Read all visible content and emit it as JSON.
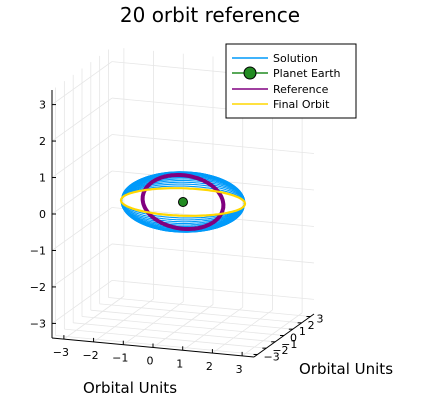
{
  "chart_data": {
    "type": "line",
    "title": "20 orbit reference",
    "xlabel": "Orbital Units",
    "ylabel": "Orbital Units",
    "zlabel": "",
    "xlim": [
      -3.4,
      3.4
    ],
    "ylim": [
      -3.4,
      3.4
    ],
    "zlim": [
      -3.4,
      3.4
    ],
    "x_ticks": [
      "−3",
      "−2",
      "−1",
      "0",
      "1",
      "2",
      "3"
    ],
    "y_ticks": [
      "−3",
      "−2",
      "−1",
      "0",
      "1",
      "2",
      "3"
    ],
    "z_ticks": [
      "−3",
      "−2",
      "−1",
      "0",
      "1",
      "2",
      "3"
    ],
    "grid": true,
    "legend_position": "top-right",
    "series": [
      {
        "name": "Solution",
        "color": "#009AFA",
        "description_orbits": 20,
        "ellipse_start": {
          "semi_major": 2.05,
          "semi_minor": 1.0,
          "inclination_deg": 40,
          "raan_deg": 0
        },
        "ellipse_end": {
          "semi_major": 2.0,
          "semi_minor": 2.0,
          "inclination_deg": 0,
          "raan_deg": 0
        }
      },
      {
        "name": "Planet Earth",
        "color": "#228B22",
        "marker": "circle",
        "x": 0.0,
        "y": 0.0,
        "z": 0.0
      },
      {
        "name": "Reference",
        "color": "#800080",
        "semi_major": 1.6,
        "semi_minor": 0.75,
        "inclination_deg": 62,
        "raan_deg": -20
      },
      {
        "name": "Final Orbit",
        "color": "#FFD700",
        "radius": 2.0,
        "inclination_deg": 0
      }
    ]
  }
}
